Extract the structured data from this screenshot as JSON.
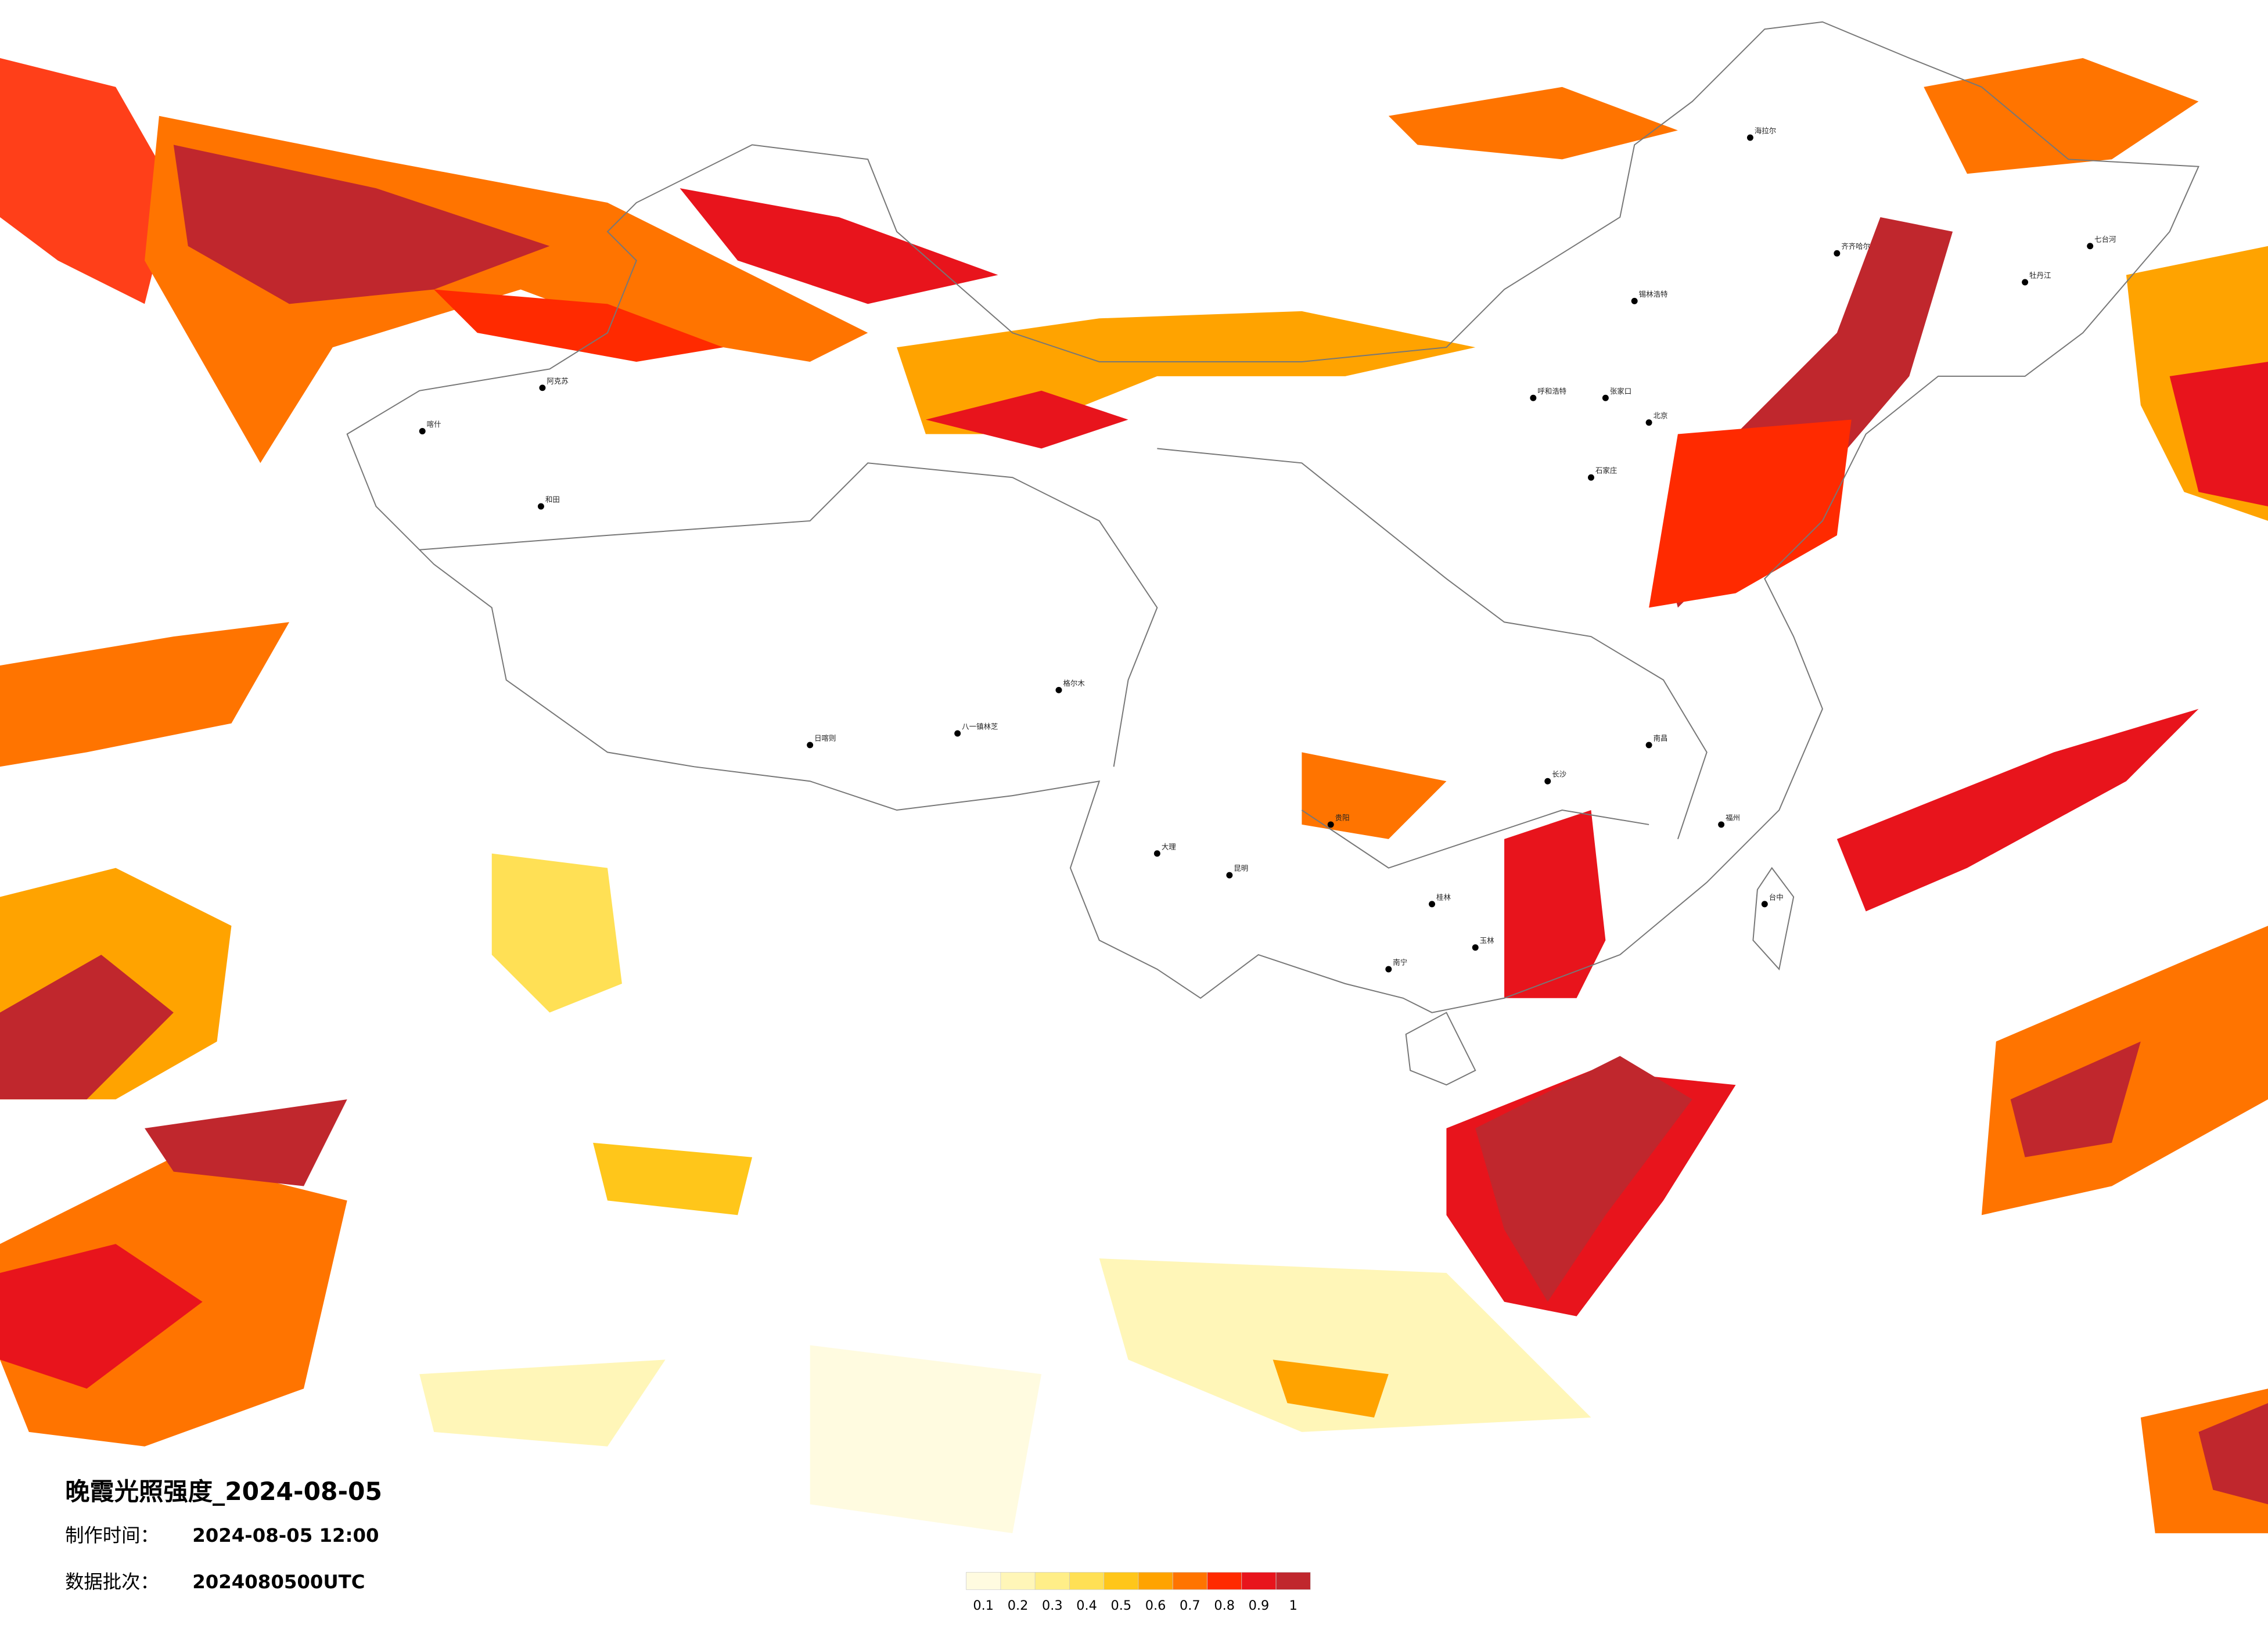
{
  "title": "晚霞光照强度_2024-08-05",
  "made": {
    "label": "制作时间：",
    "value": "2024-08-05 12:00"
  },
  "batch": {
    "label": "数据批次：",
    "value": "2024080500UTC"
  },
  "legend": {
    "ticks": [
      0.1,
      0.2,
      0.3,
      0.4,
      0.5,
      0.6,
      0.7,
      0.8,
      0.9,
      1
    ],
    "colors": [
      "#fffbe0",
      "#fff6b8",
      "#ffee88",
      "#ffe055",
      "#ffc61a",
      "#ffa300",
      "#ff7400",
      "#ff2a00",
      "#e8141c",
      "#c0272d"
    ]
  },
  "cities": [
    "海拉尔",
    "齐齐哈尔",
    "牡丹江",
    "七台河",
    "锡林浩特",
    "呼和浩特",
    "张家口",
    "北京",
    "石家庄",
    "阿克苏",
    "喀什",
    "和田",
    "日喀则",
    "八一镇林芝",
    "格尔木",
    "南宁",
    "桂林",
    "玉林",
    "大理",
    "昆明",
    "贵阳",
    "长沙",
    "南昌",
    "福州",
    "台中"
  ]
}
